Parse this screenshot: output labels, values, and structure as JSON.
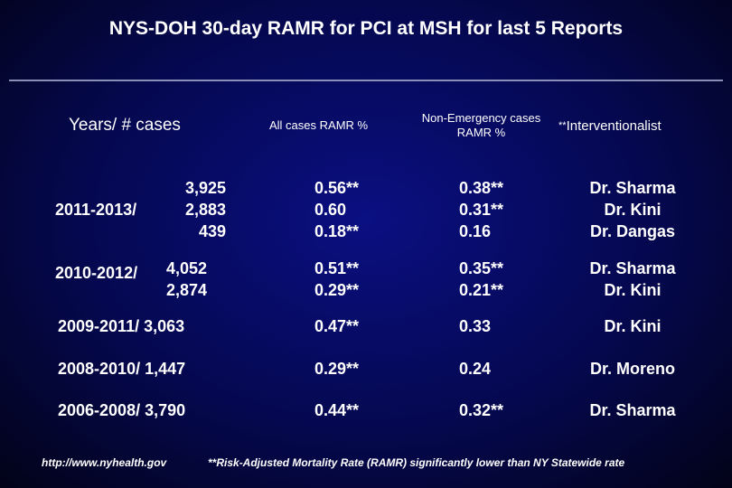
{
  "title": "NYS-DOH 30-day RAMR for PCI at MSH for last 5 Reports",
  "headers": {
    "years": "Years/ # cases",
    "all_cases": "All cases RAMR %",
    "non_emergency": "Non-Emergency cases RAMR %",
    "interventionalist_stars": "**",
    "interventionalist": "Interventionalist"
  },
  "rows": [
    {
      "label": "2011-2013/",
      "cases": "3,925\n2,883\n439",
      "all": "0.56**\n0.60\n0.18**",
      "non": "0.38**\n0.31**\n0.16",
      "doc": "Dr. Sharma\nDr. Kini\nDr. Dangas"
    },
    {
      "label": "2010-2012/",
      "cases": "4,052\n2,874",
      "all": "0.51**\n0.29**",
      "non": "0.35**\n0.21**",
      "doc": "Dr. Sharma\nDr. Kini"
    },
    {
      "label": "2009-2011/ 3,063",
      "all": "0.47**",
      "non": "0.33",
      "doc": "Dr. Kini"
    },
    {
      "label": "2008-2010/ 1,447",
      "all": "0.29**",
      "non": "0.24",
      "doc": "Dr. Moreno"
    },
    {
      "label": "2006-2008/ 3,790",
      "all": "0.44**",
      "non": "0.32**",
      "doc": "Dr. Sharma"
    }
  ],
  "source": "http://www.nyhealth.gov",
  "footnote": "**Risk-Adjusted Mortality Rate (RAMR) significantly lower than NY Statewide rate"
}
